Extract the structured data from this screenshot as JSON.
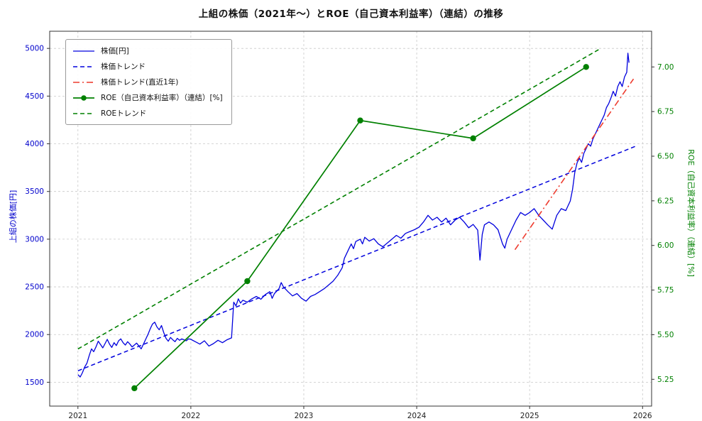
{
  "title": "上組の株価（2021年〜）とROE（自己資本利益率）（連結）の推移",
  "axes": {
    "left_label": "上組の株価[円]",
    "right_label": "ROE（自己資本利益率）（連結）[%]"
  },
  "colors": {
    "price_blue": "#0000dd",
    "roe_green": "#008000",
    "trend_red": "#ee3b2e",
    "grid_gray": "#c9c9c9",
    "axis_border": "#333333",
    "xtick_color": "#222222",
    "left_tick_color": "#0000cc",
    "right_tick_color": "#008000"
  },
  "chart_data": {
    "type": "line",
    "title": "上組の株価（2021年〜）とROE（自己資本利益率）（連結）の推移",
    "xlabel": "",
    "ylabel_left": "上組の株価[円]",
    "ylabel_right": "ROE（自己資本利益率）（連結）[%]",
    "xlim": [
      2020.75,
      2026.08
    ],
    "ylim_price": [
      1250,
      5180
    ],
    "ylim_roe": [
      5.1,
      7.2
    ],
    "xticks": [
      "2021",
      "2022",
      "2023",
      "2024",
      "2025",
      "2026"
    ],
    "xtick_values": [
      2021,
      2022,
      2023,
      2024,
      2025,
      2026
    ],
    "yticks_price": [
      1500,
      2000,
      2500,
      3000,
      3500,
      4000,
      4500,
      5000
    ],
    "yticks_roe": [
      5.25,
      5.5,
      5.75,
      6.0,
      6.25,
      6.5,
      6.75,
      7.0
    ],
    "grid": true,
    "legend_position": "upper-left",
    "series": [
      {
        "name": "株価[円]",
        "axis": "left",
        "style": "solid",
        "width": 1.3,
        "marker": false,
        "color": "#0000dd",
        "points": [
          [
            2021.0,
            1580
          ],
          [
            2021.02,
            1555
          ],
          [
            2021.04,
            1600
          ],
          [
            2021.06,
            1660
          ],
          [
            2021.08,
            1700
          ],
          [
            2021.1,
            1780
          ],
          [
            2021.12,
            1850
          ],
          [
            2021.14,
            1820
          ],
          [
            2021.16,
            1870
          ],
          [
            2021.18,
            1930
          ],
          [
            2021.2,
            1895
          ],
          [
            2021.22,
            1860
          ],
          [
            2021.24,
            1905
          ],
          [
            2021.26,
            1950
          ],
          [
            2021.28,
            1900
          ],
          [
            2021.3,
            1865
          ],
          [
            2021.32,
            1915
          ],
          [
            2021.34,
            1885
          ],
          [
            2021.36,
            1935
          ],
          [
            2021.38,
            1955
          ],
          [
            2021.4,
            1915
          ],
          [
            2021.42,
            1890
          ],
          [
            2021.44,
            1925
          ],
          [
            2021.46,
            1900
          ],
          [
            2021.48,
            1870
          ],
          [
            2021.5,
            1890
          ],
          [
            2021.52,
            1910
          ],
          [
            2021.54,
            1880
          ],
          [
            2021.56,
            1850
          ],
          [
            2021.58,
            1900
          ],
          [
            2021.6,
            1950
          ],
          [
            2021.62,
            2000
          ],
          [
            2021.64,
            2060
          ],
          [
            2021.66,
            2110
          ],
          [
            2021.68,
            2130
          ],
          [
            2021.7,
            2080
          ],
          [
            2021.72,
            2050
          ],
          [
            2021.74,
            2095
          ],
          [
            2021.76,
            2020
          ],
          [
            2021.78,
            1960
          ],
          [
            2021.8,
            1930
          ],
          [
            2021.82,
            1970
          ],
          [
            2021.84,
            1945
          ],
          [
            2021.86,
            1925
          ],
          [
            2021.88,
            1960
          ],
          [
            2021.9,
            1940
          ],
          [
            2021.92,
            1955
          ],
          [
            2021.94,
            1945
          ],
          [
            2021.96,
            1935
          ],
          [
            2021.98,
            1955
          ],
          [
            2022.0,
            1950
          ],
          [
            2022.04,
            1925
          ],
          [
            2022.08,
            1900
          ],
          [
            2022.12,
            1935
          ],
          [
            2022.16,
            1880
          ],
          [
            2022.2,
            1905
          ],
          [
            2022.24,
            1940
          ],
          [
            2022.28,
            1915
          ],
          [
            2022.32,
            1945
          ],
          [
            2022.36,
            1965
          ],
          [
            2022.38,
            2340
          ],
          [
            2022.4,
            2300
          ],
          [
            2022.42,
            2375
          ],
          [
            2022.44,
            2330
          ],
          [
            2022.46,
            2360
          ],
          [
            2022.5,
            2340
          ],
          [
            2022.54,
            2375
          ],
          [
            2022.58,
            2400
          ],
          [
            2022.62,
            2370
          ],
          [
            2022.66,
            2420
          ],
          [
            2022.7,
            2450
          ],
          [
            2022.72,
            2380
          ],
          [
            2022.74,
            2430
          ],
          [
            2022.78,
            2480
          ],
          [
            2022.8,
            2545
          ],
          [
            2022.82,
            2500
          ],
          [
            2022.86,
            2450
          ],
          [
            2022.9,
            2405
          ],
          [
            2022.94,
            2430
          ],
          [
            2022.98,
            2380
          ],
          [
            2023.02,
            2350
          ],
          [
            2023.06,
            2400
          ],
          [
            2023.1,
            2420
          ],
          [
            2023.14,
            2450
          ],
          [
            2023.18,
            2480
          ],
          [
            2023.22,
            2520
          ],
          [
            2023.26,
            2560
          ],
          [
            2023.3,
            2620
          ],
          [
            2023.34,
            2700
          ],
          [
            2023.36,
            2800
          ],
          [
            2023.4,
            2900
          ],
          [
            2023.42,
            2950
          ],
          [
            2023.44,
            2900
          ],
          [
            2023.46,
            2975
          ],
          [
            2023.5,
            3000
          ],
          [
            2023.52,
            2950
          ],
          [
            2023.54,
            3020
          ],
          [
            2023.58,
            2980
          ],
          [
            2023.62,
            3005
          ],
          [
            2023.66,
            2950
          ],
          [
            2023.7,
            2920
          ],
          [
            2023.74,
            2960
          ],
          [
            2023.78,
            3000
          ],
          [
            2023.82,
            3040
          ],
          [
            2023.86,
            3010
          ],
          [
            2023.9,
            3060
          ],
          [
            2023.94,
            3080
          ],
          [
            2023.98,
            3100
          ],
          [
            2024.02,
            3125
          ],
          [
            2024.06,
            3180
          ],
          [
            2024.1,
            3250
          ],
          [
            2024.14,
            3200
          ],
          [
            2024.18,
            3230
          ],
          [
            2024.22,
            3180
          ],
          [
            2024.26,
            3220
          ],
          [
            2024.3,
            3150
          ],
          [
            2024.34,
            3200
          ],
          [
            2024.38,
            3230
          ],
          [
            2024.42,
            3180
          ],
          [
            2024.46,
            3120
          ],
          [
            2024.5,
            3155
          ],
          [
            2024.54,
            3095
          ],
          [
            2024.56,
            2780
          ],
          [
            2024.58,
            3050
          ],
          [
            2024.6,
            3150
          ],
          [
            2024.64,
            3180
          ],
          [
            2024.68,
            3150
          ],
          [
            2024.72,
            3100
          ],
          [
            2024.76,
            2950
          ],
          [
            2024.78,
            2905
          ],
          [
            2024.8,
            3000
          ],
          [
            2024.84,
            3100
          ],
          [
            2024.88,
            3200
          ],
          [
            2024.92,
            3280
          ],
          [
            2024.96,
            3250
          ],
          [
            2025.0,
            3280
          ],
          [
            2025.04,
            3320
          ],
          [
            2025.08,
            3250
          ],
          [
            2025.12,
            3200
          ],
          [
            2025.16,
            3150
          ],
          [
            2025.2,
            3105
          ],
          [
            2025.24,
            3250
          ],
          [
            2025.28,
            3320
          ],
          [
            2025.32,
            3300
          ],
          [
            2025.36,
            3400
          ],
          [
            2025.38,
            3520
          ],
          [
            2025.4,
            3700
          ],
          [
            2025.42,
            3800
          ],
          [
            2025.44,
            3850
          ],
          [
            2025.46,
            3805
          ],
          [
            2025.48,
            3900
          ],
          [
            2025.5,
            3950
          ],
          [
            2025.52,
            4000
          ],
          [
            2025.54,
            3975
          ],
          [
            2025.56,
            4050
          ],
          [
            2025.58,
            4100
          ],
          [
            2025.6,
            4150
          ],
          [
            2025.62,
            4200
          ],
          [
            2025.64,
            4250
          ],
          [
            2025.66,
            4300
          ],
          [
            2025.68,
            4380
          ],
          [
            2025.7,
            4420
          ],
          [
            2025.72,
            4480
          ],
          [
            2025.74,
            4550
          ],
          [
            2025.76,
            4500
          ],
          [
            2025.78,
            4600
          ],
          [
            2025.8,
            4650
          ],
          [
            2025.82,
            4600
          ],
          [
            2025.84,
            4700
          ],
          [
            2025.86,
            4750
          ],
          [
            2025.87,
            4950
          ],
          [
            2025.88,
            4850
          ]
        ]
      },
      {
        "name": "株価トレンド",
        "axis": "left",
        "style": "dashed",
        "width": 1.5,
        "marker": false,
        "color": "#0000dd",
        "points": [
          [
            2021.0,
            1620
          ],
          [
            2025.95,
            3980
          ]
        ]
      },
      {
        "name": "株価トレンド(直近1年)",
        "axis": "left",
        "style": "dashdot",
        "width": 1.6,
        "marker": false,
        "color": "#ee3b2e",
        "points": [
          [
            2024.87,
            2890
          ],
          [
            2025.92,
            4680
          ]
        ]
      },
      {
        "name": "ROE（自己資本利益率）（連結）[%]",
        "axis": "right",
        "style": "solid",
        "width": 1.7,
        "marker": true,
        "color": "#008000",
        "points": [
          [
            2021.5,
            5.2
          ],
          [
            2022.5,
            5.8
          ],
          [
            2023.5,
            6.7
          ],
          [
            2024.5,
            6.6
          ],
          [
            2025.5,
            7.0
          ]
        ]
      },
      {
        "name": "ROEトレンド",
        "axis": "right",
        "style": "dashed",
        "width": 1.6,
        "marker": false,
        "color": "#008000",
        "points": [
          [
            2021.0,
            5.42
          ],
          [
            2025.62,
            7.1
          ]
        ]
      }
    ]
  }
}
